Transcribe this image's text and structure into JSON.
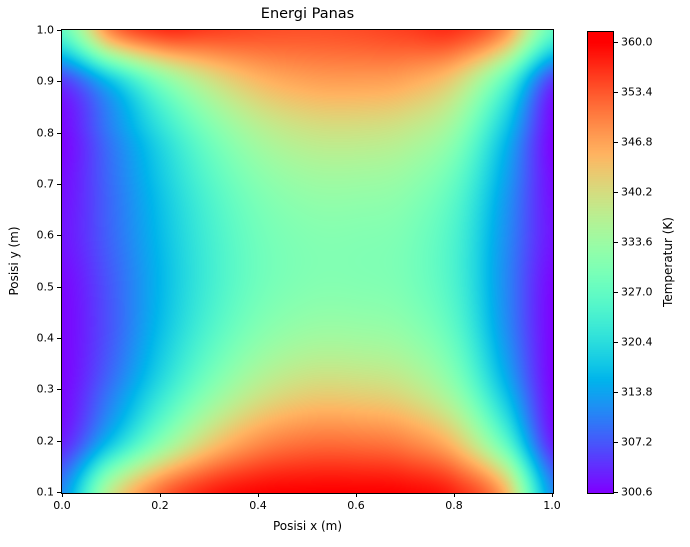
{
  "figure": {
    "background": "#ffffff",
    "text_color": "#000000"
  },
  "chart_data": {
    "type": "heatmap",
    "title": "Energi Panas",
    "xlabel": "Posisi x (m)",
    "ylabel": "Posisi y (m)",
    "colorbar_label": "Temperatur (K)",
    "colormap": "rainbow",
    "x_range": [
      0.0,
      1.0
    ],
    "y_range": [
      0.1,
      1.0
    ],
    "temp_min": 300.6,
    "temp_max": 360.0,
    "x_ticks": [
      "0.0",
      "0.2",
      "0.4",
      "0.6",
      "0.8",
      "1.0"
    ],
    "y_ticks": [
      "1.0",
      "0.9",
      "0.8",
      "0.7",
      "0.6",
      "0.5",
      "0.4",
      "0.3",
      "0.2",
      "0.1"
    ],
    "colorbar_ticks": [
      "360.0",
      "353.4",
      "346.8",
      "340.2",
      "333.6",
      "327.0",
      "320.4",
      "313.8",
      "307.2",
      "300.6"
    ],
    "grid_x": [
      0.0,
      0.1,
      0.2,
      0.3,
      0.4,
      0.5,
      0.6,
      0.7,
      0.8,
      0.9,
      1.0
    ],
    "grid_y": [
      0.1,
      0.2,
      0.3,
      0.4,
      0.5,
      0.6,
      0.7,
      0.8,
      0.9,
      1.0
    ],
    "temperature_grid_K": [
      [
        312.0,
        338.0,
        351.5,
        357.5,
        359.6,
        360.0,
        360.0,
        359.6,
        357.0,
        346.0,
        312.0
      ],
      [
        303.0,
        317.0,
        331.0,
        342.0,
        348.5,
        351.0,
        351.0,
        349.5,
        343.5,
        327.0,
        303.0
      ],
      [
        301.0,
        310.0,
        321.0,
        331.0,
        338.0,
        341.3,
        341.3,
        339.5,
        332.5,
        317.0,
        301.0
      ],
      [
        300.8,
        307.5,
        317.0,
        325.5,
        331.5,
        334.3,
        334.4,
        333.0,
        327.0,
        313.0,
        300.8
      ],
      [
        301.0,
        307.5,
        315.8,
        323.3,
        328.6,
        330.8,
        330.9,
        329.8,
        324.5,
        312.0,
        301.0
      ],
      [
        302.0,
        308.5,
        316.3,
        323.5,
        328.6,
        330.7,
        330.8,
        329.8,
        324.5,
        312.5,
        302.0
      ],
      [
        301.5,
        309.0,
        317.5,
        325.3,
        330.8,
        333.4,
        333.6,
        332.4,
        327.0,
        314.0,
        301.5
      ],
      [
        301.0,
        310.5,
        320.5,
        329.5,
        335.8,
        338.8,
        339.2,
        337.8,
        332.5,
        317.5,
        301.0
      ],
      [
        305.0,
        317.0,
        330.0,
        339.0,
        344.5,
        346.8,
        347.2,
        346.3,
        341.5,
        327.0,
        305.0
      ],
      [
        327.0,
        349.5,
        356.0,
        355.2,
        354.2,
        353.8,
        354.2,
        355.2,
        356.0,
        349.0,
        327.0
      ]
    ]
  }
}
